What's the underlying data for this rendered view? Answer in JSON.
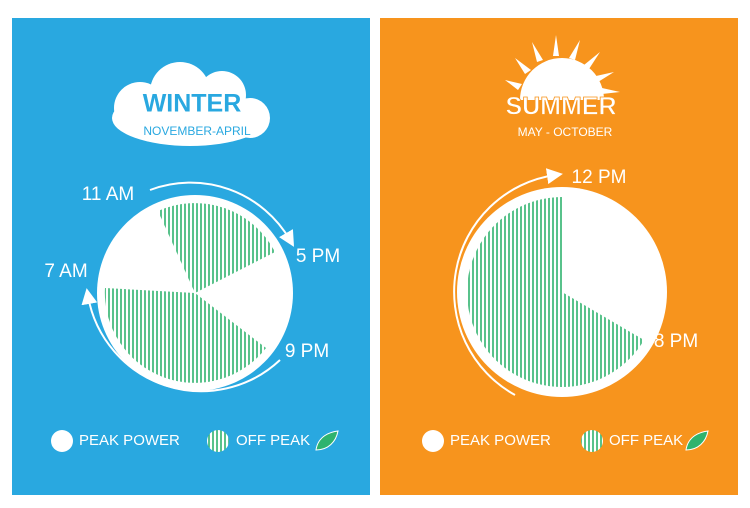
{
  "panels": [
    {
      "title": "WINTER",
      "subtitle": "NOVEMBER-APRIL",
      "times": [
        "11 AM",
        "5 PM",
        "7 AM",
        "9 PM"
      ],
      "legend": [
        "PEAK POWER",
        "OFF PEAK"
      ]
    },
    {
      "title": "SUMMER",
      "subtitle": "MAY - OCTOBER",
      "times": [
        "12 PM",
        "8 PM"
      ],
      "legend": [
        "PEAK POWER",
        "OFF PEAK"
      ]
    }
  ]
}
